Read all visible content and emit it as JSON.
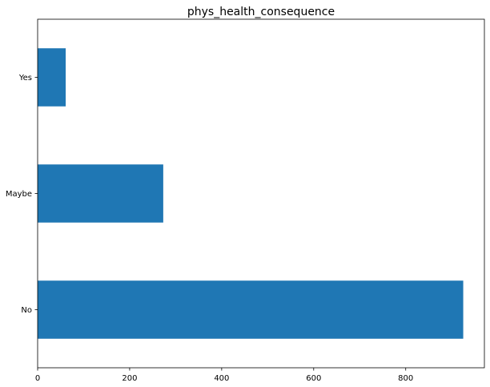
{
  "chart_data": {
    "type": "bar",
    "orientation": "horizontal",
    "title": "phys_health_consequence",
    "xlabel": "",
    "ylabel": "",
    "categories": [
      "No",
      "Maybe",
      "Yes"
    ],
    "values": [
      925,
      273,
      61
    ],
    "xlim": [
      0,
      971
    ],
    "xticks": [
      0,
      200,
      400,
      600,
      800
    ],
    "grid": false,
    "legend": "none",
    "bar_color": "#1f77b4"
  }
}
